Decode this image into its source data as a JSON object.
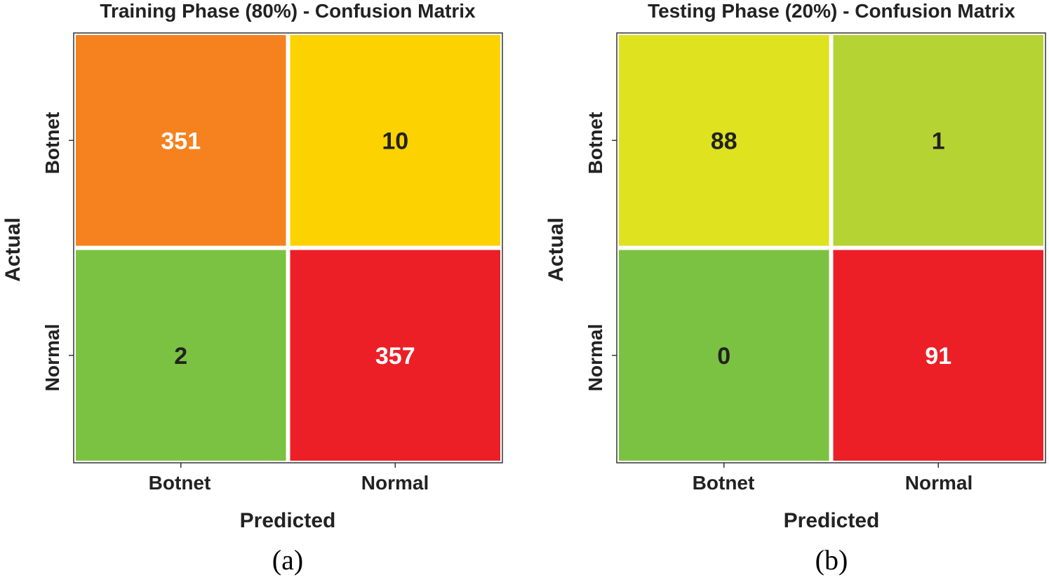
{
  "chart_data": [
    {
      "type": "heatmap",
      "title": "Training Phase (80%) - Confusion Matrix",
      "xlabel": "Predicted",
      "ylabel": "Actual",
      "x_categories": [
        "Botnet",
        "Normal"
      ],
      "y_categories": [
        "Botnet",
        "Normal"
      ],
      "values": [
        [
          351,
          10
        ],
        [
          2,
          357
        ]
      ],
      "cell_colors": [
        [
          "#f5821f",
          "#fcd200"
        ],
        [
          "#7cc242",
          "#ec1f27"
        ]
      ],
      "text_colors": [
        [
          "#ffffff",
          "#222222"
        ],
        [
          "#222222",
          "#ffffff"
        ]
      ],
      "caption": "(a)"
    },
    {
      "type": "heatmap",
      "title": "Testing Phase (20%) - Confusion Matrix",
      "xlabel": "Predicted",
      "ylabel": "Actual",
      "x_categories": [
        "Botnet",
        "Normal"
      ],
      "y_categories": [
        "Botnet",
        "Normal"
      ],
      "values": [
        [
          88,
          1
        ],
        [
          0,
          91
        ]
      ],
      "cell_colors": [
        [
          "#dfe21e",
          "#b6d334"
        ],
        [
          "#7cc242",
          "#ec1f27"
        ]
      ],
      "text_colors": [
        [
          "#222222",
          "#222222"
        ],
        [
          "#222222",
          "#ffffff"
        ]
      ],
      "caption": "(b)"
    }
  ]
}
